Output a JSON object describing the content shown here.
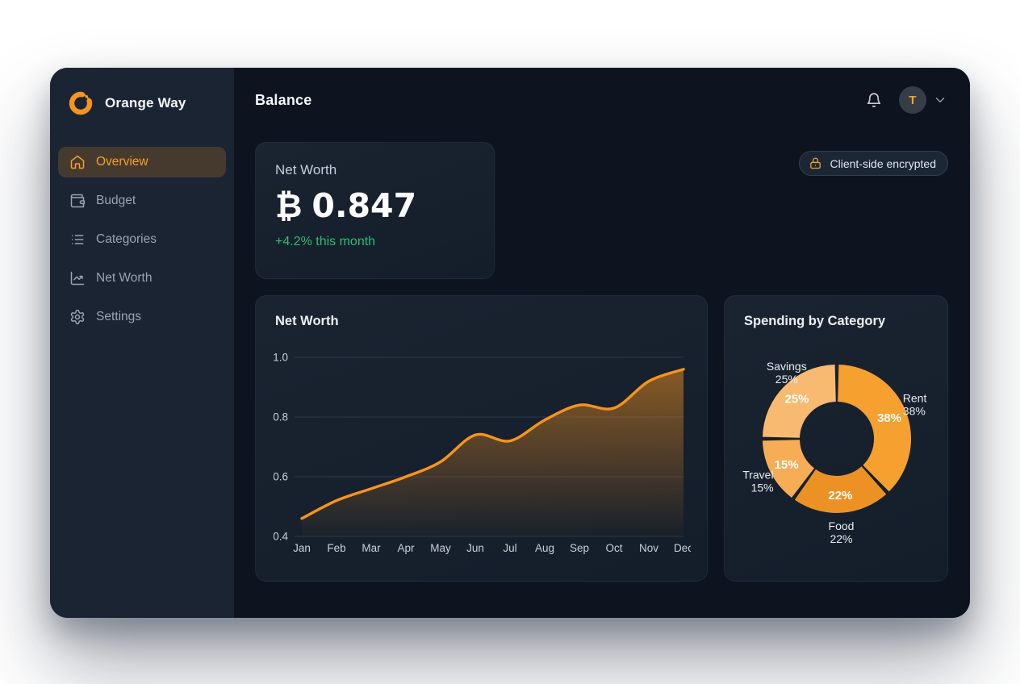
{
  "app": {
    "name": "Orange Way"
  },
  "sidebar": {
    "items": [
      {
        "label": "Overview",
        "icon": "home",
        "active": true
      },
      {
        "label": "Budget",
        "icon": "wallet",
        "active": false
      },
      {
        "label": "Categories",
        "icon": "list",
        "active": false
      },
      {
        "label": "Net Worth",
        "icon": "trend",
        "active": false
      },
      {
        "label": "Settings",
        "icon": "gear",
        "active": false
      }
    ]
  },
  "header": {
    "title": "Balance",
    "avatar_initial": "T"
  },
  "summary_card": {
    "label": "Net Worth",
    "currency_symbol": "₿",
    "value": "0.847",
    "change": "+4.2% this month"
  },
  "badge": {
    "label": "Client-side encrypted",
    "icon": "lock-icon"
  },
  "colors": {
    "accent": "#f7941e",
    "positive": "#2ebd71",
    "active_nav": "#f5a02c"
  },
  "chart_data": [
    {
      "type": "area",
      "title": "Net Worth",
      "x": [
        "Jan",
        "Feb",
        "Mar",
        "Apr",
        "May",
        "Jun",
        "Jul",
        "Aug",
        "Sep",
        "Oct",
        "Nov",
        "Dec"
      ],
      "values": [
        0.46,
        0.52,
        0.56,
        0.6,
        0.65,
        0.74,
        0.72,
        0.79,
        0.84,
        0.83,
        0.92,
        0.96
      ],
      "ylim": [
        0.4,
        1.0
      ],
      "yticks": [
        1.0,
        0.8,
        0.6,
        0.4
      ],
      "grid": true,
      "legend": "none",
      "line_color": "#f7941e"
    },
    {
      "type": "pie",
      "donut": true,
      "title": "Spending by Category",
      "start_angle_deg": 0,
      "direction": "clockwise",
      "slices": [
        {
          "label": "Rent",
          "pct": 38,
          "color": "#f5a02f"
        },
        {
          "label": "Food",
          "pct": 22,
          "color": "#ec9224"
        },
        {
          "label": "Travel",
          "pct": 15,
          "color": "#f6ad55"
        },
        {
          "label": "Savings",
          "pct": 25,
          "color": "#f8ba70"
        }
      ]
    }
  ]
}
